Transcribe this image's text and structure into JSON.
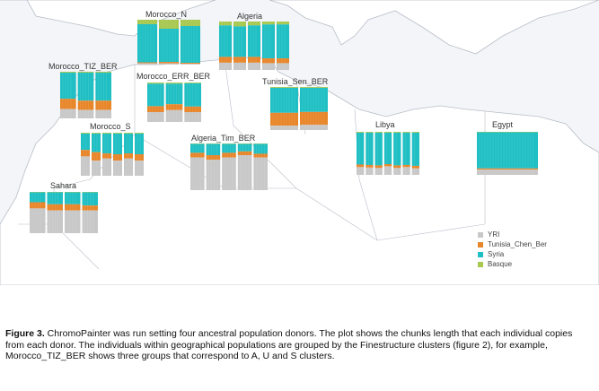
{
  "populations": [
    {
      "name": "Morocco_N",
      "groups": [
        {
          "yri": 0.03,
          "tun": 0.02,
          "basque": 0.1
        },
        {
          "yri": 0.03,
          "tun": 0.03,
          "basque": 0.2
        },
        {
          "yri": 0.02,
          "tun": 0.02,
          "basque": 0.14
        }
      ]
    },
    {
      "name": "Algeria",
      "groups": [
        {
          "yri": 0.15,
          "tun": 0.12,
          "basque": 0.08
        },
        {
          "yri": 0.15,
          "tun": 0.12,
          "basque": 0.1
        },
        {
          "yri": 0.15,
          "tun": 0.12,
          "basque": 0.08
        },
        {
          "yri": 0.14,
          "tun": 0.1,
          "basque": 0.06
        },
        {
          "yri": 0.14,
          "tun": 0.1,
          "basque": 0.06
        }
      ]
    },
    {
      "name": "Morocco_TIZ_BER",
      "groups": [
        {
          "yri": 0.2,
          "tun": 0.22,
          "basque": 0.02
        },
        {
          "yri": 0.18,
          "tun": 0.2,
          "basque": 0.02
        },
        {
          "yri": 0.18,
          "tun": 0.2,
          "basque": 0.02
        }
      ]
    },
    {
      "name": "Morocco_ERR_BER",
      "groups": [
        {
          "yri": 0.25,
          "tun": 0.15,
          "basque": 0.03
        },
        {
          "yri": 0.3,
          "tun": 0.15,
          "basque": 0.03
        },
        {
          "yri": 0.25,
          "tun": 0.14,
          "basque": 0.02
        }
      ]
    },
    {
      "name": "Tunisia_Sen_BER",
      "groups": [
        {
          "yri": 0.1,
          "tun": 0.3,
          "basque": 0.02
        },
        {
          "yri": 0.12,
          "tun": 0.3,
          "basque": 0.02
        }
      ]
    },
    {
      "name": "Morocco_S",
      "groups": [
        {
          "yri": 0.45,
          "tun": 0.15,
          "basque": 0.02
        },
        {
          "yri": 0.35,
          "tun": 0.2,
          "basque": 0.02
        },
        {
          "yri": 0.4,
          "tun": 0.12,
          "basque": 0.02
        },
        {
          "yri": 0.35,
          "tun": 0.15,
          "basque": 0.02
        },
        {
          "yri": 0.4,
          "tun": 0.12,
          "basque": 0.02
        },
        {
          "yri": 0.35,
          "tun": 0.15,
          "basque": 0.02
        }
      ]
    },
    {
      "name": "Libya",
      "groups": [
        {
          "yri": 0.18,
          "tun": 0.06,
          "basque": 0.02
        },
        {
          "yri": 0.17,
          "tun": 0.06,
          "basque": 0.02
        },
        {
          "yri": 0.16,
          "tun": 0.06,
          "basque": 0.02
        },
        {
          "yri": 0.2,
          "tun": 0.05,
          "basque": 0.02
        },
        {
          "yri": 0.16,
          "tun": 0.06,
          "basque": 0.02
        },
        {
          "yri": 0.18,
          "tun": 0.05,
          "basque": 0.02
        },
        {
          "yri": 0.15,
          "tun": 0.06,
          "basque": 0.02
        }
      ]
    },
    {
      "name": "Egypt",
      "groups": [
        {
          "yri": 0.12,
          "tun": 0.03,
          "basque": 0.01
        }
      ]
    },
    {
      "name": "Algeria_Tim_BER",
      "groups": [
        {
          "yri": 0.7,
          "tun": 0.1,
          "basque": 0.01
        },
        {
          "yri": 0.65,
          "tun": 0.1,
          "basque": 0.01
        },
        {
          "yri": 0.7,
          "tun": 0.1,
          "basque": 0.01
        },
        {
          "yri": 0.75,
          "tun": 0.08,
          "basque": 0.01
        },
        {
          "yri": 0.7,
          "tun": 0.08,
          "basque": 0.01
        }
      ]
    },
    {
      "name": "Sahara",
      "groups": [
        {
          "yri": 0.6,
          "tun": 0.15,
          "basque": 0.01
        },
        {
          "yri": 0.55,
          "tun": 0.15,
          "basque": 0.01
        },
        {
          "yri": 0.55,
          "tun": 0.15,
          "basque": 0.01
        },
        {
          "yri": 0.55,
          "tun": 0.12,
          "basque": 0.01
        }
      ]
    }
  ],
  "legend": [
    {
      "label": "YRI",
      "color": "#c8c8c8"
    },
    {
      "label": "Tunisia_Chen_Ber",
      "color": "#e8862a"
    },
    {
      "label": "Syria",
      "color": "#1fbfc4"
    },
    {
      "label": "Basque",
      "color": "#a8c850"
    }
  ],
  "colors": {
    "yri": "#c8c8c8",
    "tun": "#e8862a",
    "syria": "#1fbfc4",
    "basque": "#a8c850",
    "sea": "#f4f6f9",
    "land": "#ffffff",
    "border": "#b8bec8"
  },
  "caption": {
    "label": "Figure 3.",
    "text": " ChromoPainter was run setting four ancestral population donors. The plot shows the chunks length that each individual copies from each donor. The individuals within geographical populations are grouped by the Finestructure clusters (figure 2), for example, Morocco_TIZ_BER shows three groups that correspond to A, U and S clusters."
  }
}
